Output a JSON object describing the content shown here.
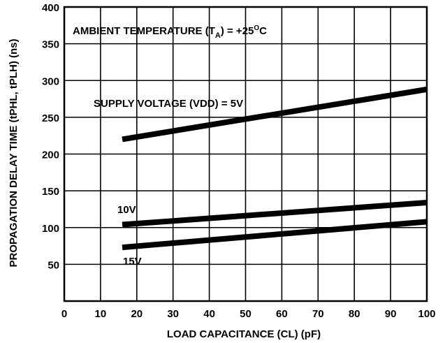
{
  "chart_data": {
    "type": "line",
    "xlabel": "LOAD CAPACITANCE (CL) (pF)",
    "ylabel": "PROPAGATION DELAY TIME (tPHL, tPLH) (ns)",
    "xlim": [
      0,
      100
    ],
    "ylim": [
      0,
      400
    ],
    "xticks": [
      0,
      10,
      20,
      30,
      40,
      50,
      60,
      70,
      80,
      90,
      100
    ],
    "yticks": [
      50,
      100,
      150,
      200,
      250,
      300,
      350,
      400
    ],
    "grid": true,
    "annotations": {
      "ambient_main": "AMBIENT TEMPERATURE (T",
      "ambient_sub": "A",
      "ambient_mid": ") = +25",
      "ambient_sup": "O",
      "ambient_end": "C"
    },
    "series": [
      {
        "name": "SUPPLY VOLTAGE (VDD) = 5V",
        "x": [
          16,
          100
        ],
        "y": [
          220,
          288
        ]
      },
      {
        "name": "10V",
        "x": [
          16,
          100
        ],
        "y": [
          104,
          134
        ]
      },
      {
        "name": "15V",
        "x": [
          16,
          100
        ],
        "y": [
          73,
          108
        ]
      }
    ]
  }
}
